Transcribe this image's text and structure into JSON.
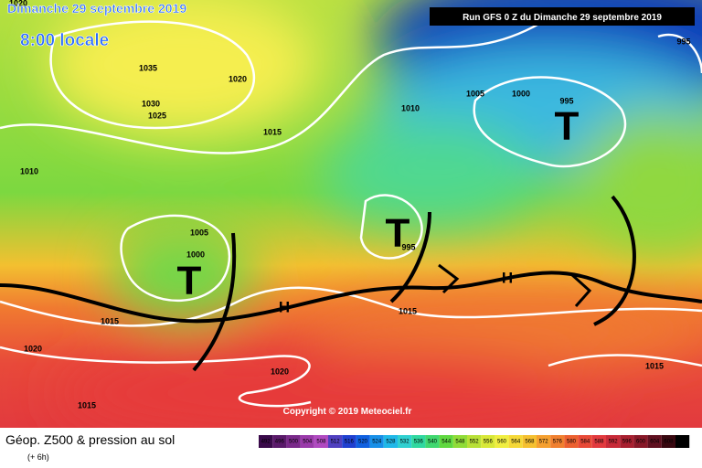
{
  "header": {
    "date": "Dimanche 29 septembre 2019",
    "time": "8:00 locale",
    "run": "Run GFS 0 Z du Dimanche 29 septembre 2019"
  },
  "isobars": [
    1020,
    1035,
    1020,
    1030,
    1025,
    1015,
    1010,
    1005,
    1000,
    995,
    995,
    1010,
    1005,
    1000,
    995,
    1015,
    1015,
    1020,
    1020,
    1015,
    1015
  ],
  "lows": [
    "T",
    "T",
    "T"
  ],
  "highs": [
    "H",
    "H"
  ],
  "copyright": "Copyright © 2019 Meteociel.fr",
  "legend": {
    "title": "Géop. Z500 & pression au sol",
    "step": "(+ 6h)",
    "scale": [
      492,
      496,
      500,
      504,
      508,
      512,
      516,
      520,
      524,
      528,
      532,
      536,
      540,
      544,
      548,
      552,
      556,
      560,
      564,
      568,
      572,
      576,
      580,
      584,
      588,
      592,
      596,
      600,
      604,
      608,
      612
    ]
  }
}
